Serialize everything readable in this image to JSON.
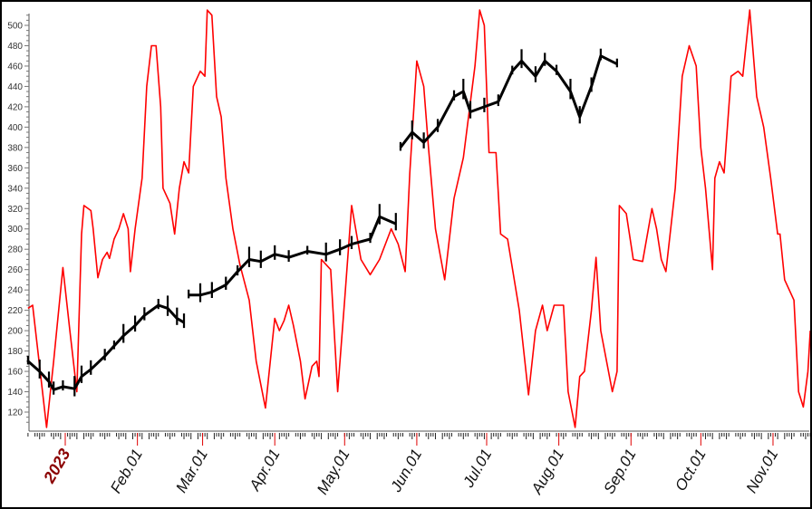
{
  "chart_data": {
    "type": "line",
    "title": "",
    "xlabel": "",
    "ylabel": "",
    "ylim": [
      101,
      515
    ],
    "yticks": [
      120,
      140,
      160,
      180,
      200,
      220,
      240,
      260,
      280,
      300,
      320,
      340,
      360,
      380,
      400,
      420,
      440,
      460,
      480,
      500
    ],
    "xlim": [
      "2022-12-16",
      "2023-11-17"
    ],
    "xticks": [
      {
        "date": "2023-01-01",
        "label": "2023",
        "year": true
      },
      {
        "date": "2023-02-01",
        "label": "Feb.01"
      },
      {
        "date": "2023-03-01",
        "label": "Mar.01"
      },
      {
        "date": "2023-04-01",
        "label": "Apr.01"
      },
      {
        "date": "2023-05-01",
        "label": "May.01"
      },
      {
        "date": "2023-06-01",
        "label": "Jun.01"
      },
      {
        "date": "2023-07-01",
        "label": "Jul.01"
      },
      {
        "date": "2023-08-01",
        "label": "Aug.01"
      },
      {
        "date": "2023-09-01",
        "label": "Sep.01"
      },
      {
        "date": "2023-10-01",
        "label": "Oct.01"
      },
      {
        "date": "2023-11-01",
        "label": "Nov.01"
      }
    ],
    "grid": false,
    "legend": "none",
    "series": [
      {
        "style": "price-bars",
        "color": "#000000",
        "segments": [
          [
            [
              "2022-12-16",
              170
            ],
            [
              "2022-12-21",
              160
            ],
            [
              "2022-12-25",
              150
            ],
            [
              "2022-12-27",
              142
            ],
            [
              "2022-12-31",
              145
            ],
            [
              "2023-01-05",
              143
            ],
            [
              "2023-01-08",
              155
            ],
            [
              "2023-01-12",
              162
            ],
            [
              "2023-01-18",
              175
            ],
            [
              "2023-01-22",
              185
            ],
            [
              "2023-01-26",
              195
            ],
            [
              "2023-01-31",
              205
            ],
            [
              "2023-02-04",
              215
            ],
            [
              "2023-02-10",
              225
            ],
            [
              "2023-02-14",
              222
            ],
            [
              "2023-02-18",
              212
            ],
            [
              "2023-02-21",
              208
            ]
          ],
          [
            [
              "2023-02-23",
              235
            ],
            [
              "2023-02-28",
              235
            ],
            [
              "2023-03-05",
              238
            ],
            [
              "2023-03-11",
              245
            ],
            [
              "2023-03-16",
              258
            ],
            [
              "2023-03-21",
              270
            ],
            [
              "2023-03-26",
              268
            ],
            [
              "2023-04-01",
              275
            ],
            [
              "2023-04-07",
              272
            ],
            [
              "2023-04-15",
              278
            ],
            [
              "2023-04-23",
              275
            ],
            [
              "2023-04-29",
              280
            ],
            [
              "2023-05-04",
              285
            ],
            [
              "2023-05-12",
              290
            ],
            [
              "2023-05-16",
              312
            ],
            [
              "2023-05-23",
              305
            ]
          ],
          [
            [
              "2023-05-25",
              380
            ],
            [
              "2023-05-30",
              395
            ],
            [
              "2023-06-04",
              385
            ],
            [
              "2023-06-10",
              400
            ],
            [
              "2023-06-17",
              430
            ],
            [
              "2023-06-21",
              435
            ],
            [
              "2023-06-24",
              415
            ],
            [
              "2023-06-30",
              420
            ],
            [
              "2023-07-06",
              425
            ],
            [
              "2023-07-12",
              455
            ],
            [
              "2023-07-16",
              465
            ],
            [
              "2023-07-22",
              450
            ],
            [
              "2023-07-26",
              465
            ],
            [
              "2023-07-31",
              455
            ],
            [
              "2023-08-06",
              435
            ],
            [
              "2023-08-10",
              410
            ],
            [
              "2023-08-15",
              440
            ],
            [
              "2023-08-19",
              470
            ],
            [
              "2023-08-26",
              462
            ]
          ]
        ]
      },
      {
        "style": "line",
        "color": "#ff0000",
        "points": [
          [
            "2022-12-16",
            222
          ],
          [
            "2022-12-18",
            225
          ],
          [
            "2022-12-21",
            165
          ],
          [
            "2022-12-24",
            105
          ],
          [
            "2022-12-27",
            170
          ],
          [
            "2022-12-31",
            262
          ],
          [
            "2023-01-03",
            200
          ],
          [
            "2023-01-06",
            140
          ],
          [
            "2023-01-08",
            295
          ],
          [
            "2023-01-09",
            323
          ],
          [
            "2023-01-12",
            318
          ],
          [
            "2023-01-13",
            300
          ],
          [
            "2023-01-15",
            252
          ],
          [
            "2023-01-17",
            270
          ],
          [
            "2023-01-19",
            277
          ],
          [
            "2023-01-20",
            271
          ],
          [
            "2023-01-22",
            290
          ],
          [
            "2023-01-24",
            300
          ],
          [
            "2023-01-26",
            315
          ],
          [
            "2023-01-28",
            300
          ],
          [
            "2023-01-29",
            258
          ],
          [
            "2023-01-31",
            300
          ],
          [
            "2023-02-03",
            350
          ],
          [
            "2023-02-05",
            440
          ],
          [
            "2023-02-07",
            480
          ],
          [
            "2023-02-09",
            480
          ],
          [
            "2023-02-11",
            420
          ],
          [
            "2023-02-12",
            340
          ],
          [
            "2023-02-15",
            325
          ],
          [
            "2023-02-17",
            295
          ],
          [
            "2023-02-19",
            340
          ],
          [
            "2023-02-21",
            366
          ],
          [
            "2023-02-23",
            355
          ],
          [
            "2023-02-25",
            440
          ],
          [
            "2023-02-28",
            455
          ],
          [
            "2023-03-02",
            450
          ],
          [
            "2023-03-03",
            515
          ],
          [
            "2023-03-05",
            510
          ],
          [
            "2023-03-07",
            430
          ],
          [
            "2023-03-09",
            410
          ],
          [
            "2023-03-11",
            350
          ],
          [
            "2023-03-14",
            300
          ],
          [
            "2023-03-17",
            265
          ],
          [
            "2023-03-21",
            230
          ],
          [
            "2023-03-24",
            170
          ],
          [
            "2023-03-28",
            124
          ],
          [
            "2023-03-31",
            190
          ],
          [
            "2023-04-01",
            212
          ],
          [
            "2023-04-03",
            200
          ],
          [
            "2023-04-05",
            210
          ],
          [
            "2023-04-07",
            225
          ],
          [
            "2023-04-09",
            205
          ],
          [
            "2023-04-12",
            170
          ],
          [
            "2023-04-14",
            133
          ],
          [
            "2023-04-17",
            165
          ],
          [
            "2023-04-19",
            170
          ],
          [
            "2023-04-20",
            155
          ],
          [
            "2023-04-21",
            270
          ],
          [
            "2023-04-25",
            260
          ],
          [
            "2023-04-28",
            140
          ],
          [
            "2023-05-01",
            230
          ],
          [
            "2023-05-04",
            323
          ],
          [
            "2023-05-08",
            270
          ],
          [
            "2023-05-12",
            255
          ],
          [
            "2023-05-16",
            270
          ],
          [
            "2023-05-21",
            300
          ],
          [
            "2023-05-24",
            285
          ],
          [
            "2023-05-27",
            258
          ],
          [
            "2023-05-29",
            355
          ],
          [
            "2023-06-01",
            465
          ],
          [
            "2023-06-04",
            440
          ],
          [
            "2023-06-06",
            380
          ],
          [
            "2023-06-09",
            300
          ],
          [
            "2023-06-13",
            250
          ],
          [
            "2023-06-17",
            330
          ],
          [
            "2023-06-21",
            370
          ],
          [
            "2023-06-26",
            460
          ],
          [
            "2023-06-28",
            515
          ],
          [
            "2023-06-30",
            500
          ],
          [
            "2023-07-02",
            375
          ],
          [
            "2023-07-05",
            375
          ],
          [
            "2023-07-07",
            295
          ],
          [
            "2023-07-10",
            290
          ],
          [
            "2023-07-15",
            220
          ],
          [
            "2023-07-19",
            137
          ],
          [
            "2023-07-22",
            200
          ],
          [
            "2023-07-25",
            225
          ],
          [
            "2023-07-27",
            200
          ],
          [
            "2023-07-30",
            225
          ],
          [
            "2023-08-03",
            225
          ],
          [
            "2023-08-05",
            140
          ],
          [
            "2023-08-08",
            105
          ],
          [
            "2023-08-10",
            155
          ],
          [
            "2023-08-12",
            160
          ],
          [
            "2023-08-15",
            220
          ],
          [
            "2023-08-17",
            272
          ],
          [
            "2023-08-19",
            200
          ],
          [
            "2023-08-24",
            140
          ],
          [
            "2023-08-26",
            160
          ],
          [
            "2023-08-27",
            323
          ],
          [
            "2023-08-30",
            315
          ],
          [
            "2023-09-02",
            270
          ],
          [
            "2023-09-06",
            268
          ],
          [
            "2023-09-10",
            320
          ],
          [
            "2023-09-12",
            300
          ],
          [
            "2023-09-14",
            270
          ],
          [
            "2023-09-16",
            258
          ],
          [
            "2023-09-20",
            340
          ],
          [
            "2023-09-23",
            450
          ],
          [
            "2023-09-26",
            480
          ],
          [
            "2023-09-29",
            460
          ],
          [
            "2023-10-01",
            380
          ],
          [
            "2023-10-03",
            340
          ],
          [
            "2023-10-06",
            260
          ],
          [
            "2023-10-07",
            350
          ],
          [
            "2023-10-09",
            366
          ],
          [
            "2023-10-11",
            355
          ],
          [
            "2023-10-14",
            450
          ],
          [
            "2023-10-17",
            455
          ],
          [
            "2023-10-19",
            450
          ],
          [
            "2023-10-22",
            515
          ],
          [
            "2023-10-25",
            430
          ],
          [
            "2023-10-28",
            400
          ],
          [
            "2023-10-31",
            350
          ],
          [
            "2023-11-03",
            295
          ],
          [
            "2023-11-04",
            295
          ],
          [
            "2023-11-06",
            250
          ],
          [
            "2023-11-10",
            230
          ],
          [
            "2023-11-12",
            140
          ],
          [
            "2023-11-14",
            125
          ],
          [
            "2023-11-16",
            160
          ],
          [
            "2023-11-17",
            200
          ]
        ]
      }
    ]
  }
}
